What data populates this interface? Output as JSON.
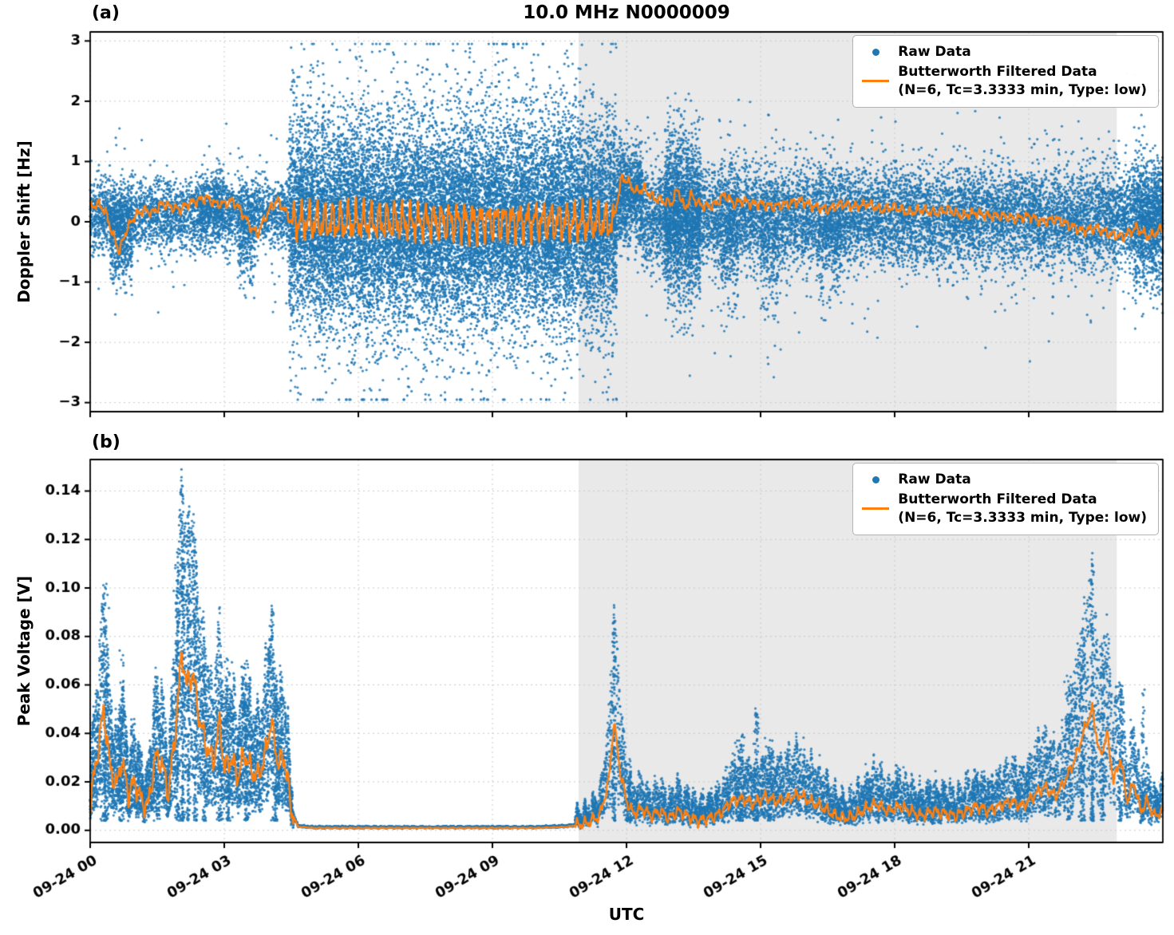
{
  "title": "10.0 MHz N0000009",
  "xlabel": "UTC",
  "panels": [
    {
      "label": "(a)",
      "ylabel": "Doppler Shift [Hz]"
    },
    {
      "label": "(b)",
      "ylabel": "Peak Voltage [V]"
    }
  ],
  "legend": {
    "raw_label": "Raw Data",
    "filtered_label": "Butterworth Filtered Data",
    "filtered_sub": "(N=6, Tc=3.3333 min, Type: low)"
  },
  "colors": {
    "raw": "#1f77b4",
    "filtered": "#ff7f0e",
    "shade": "#e9e9e9",
    "grid": "#c8c8c8",
    "axis": "#000000"
  },
  "chart_data": [
    {
      "type": "scatter",
      "title": "10.0 MHz N0000009",
      "ylabel": "Doppler Shift [Hz]",
      "xlabel": "UTC",
      "xlim": [
        0,
        24
      ],
      "ylim": [
        -3.15,
        3.15
      ],
      "yticks": [
        -3,
        -2,
        -1,
        0,
        1,
        2,
        3
      ],
      "ytick_labels": [
        "−3",
        "−2",
        "−1",
        "0",
        "1",
        "2",
        "3"
      ],
      "xticks": [
        0,
        3,
        6,
        9,
        12,
        15,
        18,
        21
      ],
      "xtick_labels": [
        "09-24 00",
        "09-24 03",
        "09-24 06",
        "09-24 09",
        "09-24 12",
        "09-24 15",
        "09-24 18",
        "09-24 21"
      ],
      "shaded_region_hours": [
        10.93,
        22.97
      ],
      "grid": true,
      "legend_position": "upper right",
      "series": [
        {
          "name": "Raw Data",
          "kind": "scatter"
        },
        {
          "name": "Butterworth Filtered Data (N=6, Tc=3.3333 min, Type: low)",
          "kind": "line"
        }
      ],
      "seed": 1337,
      "noise": {
        "freqs": [
          36,
          73,
          140
        ],
        "amps": [
          0.55,
          0.3,
          0.18
        ]
      },
      "wiggle": [
        {
          "t0": 0.0,
          "t1": 4.5,
          "amp": 0.1
        },
        {
          "t0": 4.5,
          "t1": 11.7,
          "amp": 0.4
        },
        {
          "t0": 11.7,
          "t1": 24.0,
          "amp": 0.1
        }
      ],
      "scatter_segments": [
        {
          "t0": 0.0,
          "t1": 4.45,
          "n": 3200,
          "mean": 0.12,
          "std": 0.28,
          "tail": 0.06,
          "tailScale": 2.2
        },
        {
          "t0": 0.45,
          "t1": 0.95,
          "n": 400,
          "mean": -0.35,
          "std": 0.35
        },
        {
          "t0": 2.4,
          "t1": 3.0,
          "n": 300,
          "mean": 0.3,
          "std": 0.3
        },
        {
          "t0": 3.3,
          "t1": 3.7,
          "n": 220,
          "mean": -0.35,
          "std": 0.4
        },
        {
          "t0": 4.45,
          "t1": 11.78,
          "n": 17000,
          "mean": 0.0,
          "std": 0.8,
          "tail": 0.12,
          "tailScale": 1.9,
          "clip": 2.95
        },
        {
          "t0": 11.78,
          "t1": 12.35,
          "n": 900,
          "mean": 0.45,
          "std": 0.42
        },
        {
          "t0": 12.35,
          "t1": 24.0,
          "n": 10500,
          "mean": 0.08,
          "std": 0.4,
          "tail": 0.08,
          "tailScale": 2.0
        },
        {
          "t0": 12.85,
          "t1": 13.65,
          "n": 1400,
          "mean": 0.1,
          "std": 0.75
        },
        {
          "t0": 14.1,
          "t1": 14.5,
          "n": 300,
          "mean": -0.2,
          "std": 0.6
        },
        {
          "t0": 15.0,
          "t1": 15.4,
          "n": 180,
          "mean": -0.5,
          "std": 0.7
        },
        {
          "t0": 16.3,
          "t1": 16.8,
          "n": 250,
          "mean": -0.3,
          "std": 0.55
        },
        {
          "t0": 23.35,
          "t1": 24.0,
          "n": 700,
          "mean": 0.0,
          "std": 0.55
        }
      ],
      "line_points": [
        [
          0,
          0.25
        ],
        [
          0.2,
          0.3
        ],
        [
          0.35,
          0.15
        ],
        [
          0.5,
          -0.2
        ],
        [
          0.65,
          -0.5
        ],
        [
          0.8,
          -0.15
        ],
        [
          1.0,
          0.1
        ],
        [
          1.2,
          0.2
        ],
        [
          1.4,
          0.15
        ],
        [
          1.6,
          0.3
        ],
        [
          1.8,
          0.25
        ],
        [
          2.0,
          0.2
        ],
        [
          2.2,
          0.3
        ],
        [
          2.4,
          0.35
        ],
        [
          2.6,
          0.4
        ],
        [
          2.8,
          0.3
        ],
        [
          3.0,
          0.3
        ],
        [
          3.2,
          0.35
        ],
        [
          3.4,
          0.15
        ],
        [
          3.6,
          -0.1
        ],
        [
          3.75,
          -0.2
        ],
        [
          3.9,
          0.05
        ],
        [
          4.05,
          0.25
        ],
        [
          4.2,
          0.35
        ],
        [
          4.35,
          0.2
        ],
        [
          4.5,
          0.0
        ],
        [
          11.7,
          0.0
        ],
        [
          11.9,
          0.75
        ],
        [
          12.05,
          0.65
        ],
        [
          12.2,
          0.5
        ],
        [
          12.4,
          0.55
        ],
        [
          12.6,
          0.4
        ],
        [
          12.8,
          0.35
        ],
        [
          13.0,
          0.3
        ],
        [
          13.15,
          0.55
        ],
        [
          13.3,
          0.2
        ],
        [
          13.45,
          0.45
        ],
        [
          13.6,
          0.3
        ],
        [
          13.8,
          0.25
        ],
        [
          14.0,
          0.3
        ],
        [
          14.2,
          0.45
        ],
        [
          14.4,
          0.3
        ],
        [
          14.6,
          0.35
        ],
        [
          14.8,
          0.3
        ],
        [
          15.0,
          0.3
        ],
        [
          15.3,
          0.25
        ],
        [
          15.6,
          0.3
        ],
        [
          15.9,
          0.35
        ],
        [
          16.2,
          0.25
        ],
        [
          16.5,
          0.2
        ],
        [
          16.8,
          0.3
        ],
        [
          17.1,
          0.25
        ],
        [
          17.4,
          0.3
        ],
        [
          17.7,
          0.2
        ],
        [
          18.0,
          0.25
        ],
        [
          18.3,
          0.15
        ],
        [
          18.6,
          0.2
        ],
        [
          18.9,
          0.15
        ],
        [
          19.2,
          0.2
        ],
        [
          19.5,
          0.1
        ],
        [
          19.8,
          0.15
        ],
        [
          20.1,
          0.1
        ],
        [
          20.4,
          0.1
        ],
        [
          20.7,
          0.05
        ],
        [
          21.0,
          0.1
        ],
        [
          21.3,
          0.0
        ],
        [
          21.6,
          0.05
        ],
        [
          21.9,
          -0.05
        ],
        [
          22.2,
          -0.15
        ],
        [
          22.5,
          -0.1
        ],
        [
          22.8,
          -0.2
        ],
        [
          23.1,
          -0.25
        ],
        [
          23.4,
          -0.1
        ],
        [
          23.7,
          -0.25
        ],
        [
          24,
          -0.1
        ]
      ]
    },
    {
      "type": "scatter",
      "ylabel": "Peak Voltage [V]",
      "xlabel": "UTC",
      "xlim": [
        0,
        24
      ],
      "ylim": [
        -0.005,
        0.153
      ],
      "yticks": [
        0.0,
        0.02,
        0.04,
        0.06,
        0.08,
        0.1,
        0.12,
        0.14
      ],
      "ytick_labels": [
        "0.00",
        "0.02",
        "0.04",
        "0.06",
        "0.08",
        "0.10",
        "0.12",
        "0.14"
      ],
      "xticks": [
        0,
        3,
        6,
        9,
        12,
        15,
        18,
        21
      ],
      "xtick_labels": [
        "09-24 00",
        "09-24 03",
        "09-24 06",
        "09-24 09",
        "09-24 12",
        "09-24 15",
        "09-24 18",
        "09-24 21"
      ],
      "shaded_region_hours": [
        10.93,
        22.97
      ],
      "grid": true,
      "legend_position": "upper right",
      "series": [
        {
          "name": "Raw Data",
          "kind": "scatter"
        },
        {
          "name": "Butterworth Filtered Data (N=6, Tc=3.3333 min, Type: low)",
          "kind": "line"
        }
      ],
      "seed": 2024,
      "noise": {
        "freqs": [
          36,
          73,
          140
        ],
        "amps": [
          0.55,
          0.3,
          0.18
        ]
      },
      "wiggle": [
        {
          "t0": 0.0,
          "t1": 4.55,
          "amp": 0.006
        },
        {
          "t0": 4.55,
          "t1": 10.85,
          "amp": 0.0002
        },
        {
          "t0": 10.85,
          "t1": 24.0,
          "amp": 0.003
        }
      ],
      "scatter_segments": [
        {
          "t0": 0.0,
          "t1": 4.55,
          "n": 6000,
          "rel": true,
          "mlo": 0.3,
          "mhi": 2.0,
          "add": 0.004
        },
        {
          "t0": 4.55,
          "t1": 10.85,
          "n": 2500,
          "rel": true,
          "mlo": 0.85,
          "mhi": 1.15,
          "add": 0.0006
        },
        {
          "t0": 10.85,
          "t1": 24.0,
          "n": 9000,
          "rel": true,
          "mlo": 0.3,
          "mhi": 2.2,
          "add": 0.004
        }
      ],
      "spikes": [
        {
          "t": 0.33,
          "h": 0.102,
          "w": 0.1,
          "n": 130
        },
        {
          "t": 0.7,
          "h": 0.075,
          "w": 0.08,
          "n": 90
        },
        {
          "t": 1.5,
          "h": 0.06,
          "w": 0.1,
          "n": 90
        },
        {
          "t": 1.95,
          "h": 0.118,
          "w": 0.07,
          "n": 140
        },
        {
          "t": 2.07,
          "h": 0.148,
          "w": 0.05,
          "n": 160
        },
        {
          "t": 2.2,
          "h": 0.135,
          "w": 0.05,
          "n": 120
        },
        {
          "t": 2.35,
          "h": 0.1,
          "w": 0.06,
          "n": 100
        },
        {
          "t": 2.55,
          "h": 0.08,
          "w": 0.06,
          "n": 80
        },
        {
          "t": 2.9,
          "h": 0.06,
          "w": 0.08,
          "n": 80
        },
        {
          "t": 3.1,
          "h": 0.072,
          "w": 0.08,
          "n": 100
        },
        {
          "t": 3.5,
          "h": 0.07,
          "w": 0.09,
          "n": 100
        },
        {
          "t": 4.15,
          "h": 0.062,
          "w": 0.07,
          "n": 80
        },
        {
          "t": 11.72,
          "h": 0.081,
          "w": 0.05,
          "n": 120
        },
        {
          "t": 12.05,
          "h": 0.03,
          "w": 0.08,
          "n": 60
        },
        {
          "t": 14.55,
          "h": 0.04,
          "w": 0.12,
          "n": 90
        },
        {
          "t": 14.9,
          "h": 0.052,
          "w": 0.08,
          "n": 90
        },
        {
          "t": 15.2,
          "h": 0.038,
          "w": 0.1,
          "n": 70
        },
        {
          "t": 21.9,
          "h": 0.065,
          "w": 0.1,
          "n": 90
        },
        {
          "t": 22.2,
          "h": 0.08,
          "w": 0.08,
          "n": 100
        },
        {
          "t": 22.42,
          "h": 0.113,
          "w": 0.06,
          "n": 130
        },
        {
          "t": 22.65,
          "h": 0.08,
          "w": 0.07,
          "n": 90
        },
        {
          "t": 23.05,
          "h": 0.06,
          "w": 0.05,
          "n": 60
        },
        {
          "t": 23.55,
          "h": 0.06,
          "w": 0.04,
          "n": 50
        }
      ],
      "line_points": [
        [
          0,
          0.012
        ],
        [
          0.15,
          0.03
        ],
        [
          0.3,
          0.05
        ],
        [
          0.45,
          0.025
        ],
        [
          0.6,
          0.018
        ],
        [
          0.7,
          0.03
        ],
        [
          0.85,
          0.015
        ],
        [
          1.0,
          0.02
        ],
        [
          1.15,
          0.012
        ],
        [
          1.3,
          0.01
        ],
        [
          1.45,
          0.03
        ],
        [
          1.6,
          0.028
        ],
        [
          1.75,
          0.015
        ],
        [
          1.9,
          0.04
        ],
        [
          2.05,
          0.074
        ],
        [
          2.15,
          0.06
        ],
        [
          2.3,
          0.065
        ],
        [
          2.45,
          0.045
        ],
        [
          2.6,
          0.035
        ],
        [
          2.75,
          0.028
        ],
        [
          2.9,
          0.045
        ],
        [
          3.0,
          0.025
        ],
        [
          3.15,
          0.03
        ],
        [
          3.3,
          0.022
        ],
        [
          3.45,
          0.032
        ],
        [
          3.6,
          0.025
        ],
        [
          3.75,
          0.022
        ],
        [
          3.9,
          0.03
        ],
        [
          4.05,
          0.045
        ],
        [
          4.2,
          0.028
        ],
        [
          4.35,
          0.03
        ],
        [
          4.5,
          0.008
        ],
        [
          4.65,
          0.0015
        ],
        [
          5.0,
          0.001
        ],
        [
          6.0,
          0.001
        ],
        [
          7.0,
          0.001
        ],
        [
          8.0,
          0.001
        ],
        [
          9.0,
          0.001
        ],
        [
          10.0,
          0.001
        ],
        [
          10.7,
          0.0015
        ],
        [
          11.1,
          0.003
        ],
        [
          11.4,
          0.006
        ],
        [
          11.6,
          0.02
        ],
        [
          11.72,
          0.045
        ],
        [
          11.85,
          0.025
        ],
        [
          12.0,
          0.012
        ],
        [
          12.15,
          0.007
        ],
        [
          12.35,
          0.009
        ],
        [
          12.55,
          0.006
        ],
        [
          12.75,
          0.008
        ],
        [
          12.95,
          0.005
        ],
        [
          13.15,
          0.008
        ],
        [
          13.35,
          0.006
        ],
        [
          13.6,
          0.004
        ],
        [
          13.85,
          0.005
        ],
        [
          14.1,
          0.007
        ],
        [
          14.35,
          0.012
        ],
        [
          14.6,
          0.013
        ],
        [
          14.85,
          0.011
        ],
        [
          15.1,
          0.014
        ],
        [
          15.35,
          0.012
        ],
        [
          15.6,
          0.013
        ],
        [
          15.85,
          0.015
        ],
        [
          16.1,
          0.012
        ],
        [
          16.35,
          0.01
        ],
        [
          16.6,
          0.007
        ],
        [
          16.85,
          0.005
        ],
        [
          17.1,
          0.006
        ],
        [
          17.35,
          0.009
        ],
        [
          17.6,
          0.011
        ],
        [
          17.85,
          0.008
        ],
        [
          18.1,
          0.01
        ],
        [
          18.35,
          0.008
        ],
        [
          18.6,
          0.006
        ],
        [
          18.85,
          0.008
        ],
        [
          19.1,
          0.007
        ],
        [
          19.35,
          0.006
        ],
        [
          19.6,
          0.008
        ],
        [
          19.85,
          0.01
        ],
        [
          20.1,
          0.008
        ],
        [
          20.35,
          0.01
        ],
        [
          20.6,
          0.012
        ],
        [
          20.85,
          0.01
        ],
        [
          21.1,
          0.014
        ],
        [
          21.35,
          0.018
        ],
        [
          21.6,
          0.014
        ],
        [
          21.85,
          0.022
        ],
        [
          22.05,
          0.03
        ],
        [
          22.25,
          0.042
        ],
        [
          22.42,
          0.05
        ],
        [
          22.6,
          0.03
        ],
        [
          22.75,
          0.04
        ],
        [
          22.9,
          0.02
        ],
        [
          23.05,
          0.03
        ],
        [
          23.2,
          0.012
        ],
        [
          23.35,
          0.02
        ],
        [
          23.5,
          0.008
        ],
        [
          23.65,
          0.012
        ],
        [
          23.8,
          0.006
        ],
        [
          24,
          0.008
        ]
      ]
    }
  ]
}
